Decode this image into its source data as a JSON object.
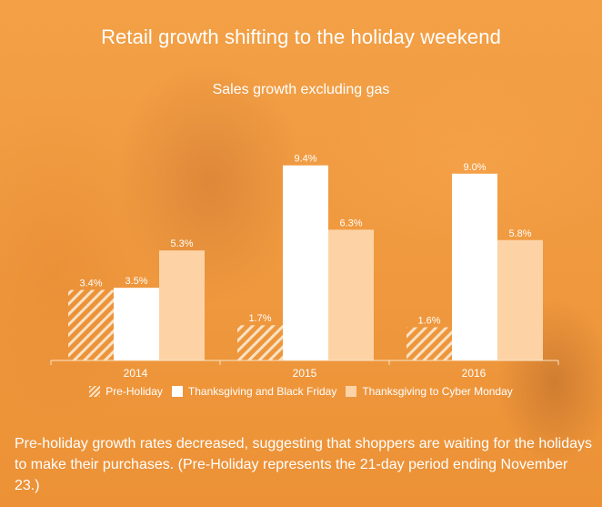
{
  "header": {
    "title": "Retail growth shifting to the holiday weekend",
    "subtitle": "Sales growth excluding gas"
  },
  "caption": "Pre-holiday growth rates decreased, suggesting that shoppers are waiting for the holidays to make their purchases. (Pre-Holiday represents the 21-day period ending November 23.)",
  "colors": {
    "background": "#f09a40",
    "pre_holiday": "#f9e2c4",
    "thanksgiving_black_friday": "#ffffff",
    "thanksgiving_cyber_monday": "#fdd3a6",
    "axis": "#fbe4c8",
    "text": "#ffffff"
  },
  "chart_data": {
    "type": "bar",
    "categories": [
      "2014",
      "2015",
      "2016"
    ],
    "series": [
      {
        "name": "Pre-Holiday",
        "values": [
          3.4,
          1.7,
          1.6
        ],
        "labels": [
          "3.4%",
          "1.7%",
          "1.6%"
        ],
        "pattern": "hatched"
      },
      {
        "name": "Thanksgiving and Black Friday",
        "values": [
          3.5,
          9.4,
          9.0
        ],
        "labels": [
          "3.5%",
          "9.4%",
          "9.0%"
        ]
      },
      {
        "name": "Thanksgiving to Cyber Monday",
        "values": [
          5.3,
          6.3,
          5.8
        ],
        "labels": [
          "5.3%",
          "6.3%",
          "5.8%"
        ]
      }
    ],
    "title": "Retail growth shifting to the holiday weekend",
    "subtitle": "Sales growth excluding gas",
    "xlabel": "",
    "ylabel": "",
    "ylim": [
      0,
      10
    ],
    "grid": false,
    "legend": "bottom-center"
  }
}
